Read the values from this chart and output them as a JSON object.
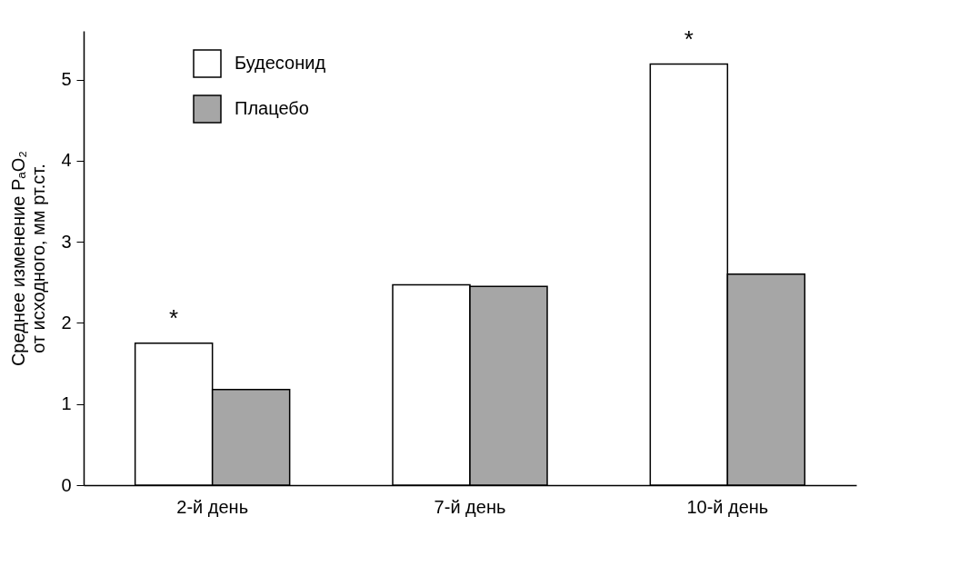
{
  "chart_data": {
    "type": "bar",
    "ylabel": "Среднее изменение PₐO₂ от исходного, мм рт.ст.",
    "categories": [
      "2-й день",
      "7-й день",
      "10-й день"
    ],
    "series": [
      {
        "name": "Будесонид",
        "color": "#ffffff",
        "values": [
          1.75,
          2.47,
          5.19
        ]
      },
      {
        "name": "Плацебо",
        "color": "#a6a6a6",
        "values": [
          1.18,
          2.45,
          2.6
        ]
      }
    ],
    "ylim": [
      0,
      5.6
    ],
    "yticks": [
      0,
      1,
      2,
      3,
      4,
      5
    ],
    "grid": false,
    "legend": "top left",
    "annotations": [
      {
        "text": "*",
        "x": "2-й день",
        "y": 1.75
      },
      {
        "text": "*",
        "x": "10-й день",
        "y": 5.19
      }
    ]
  }
}
